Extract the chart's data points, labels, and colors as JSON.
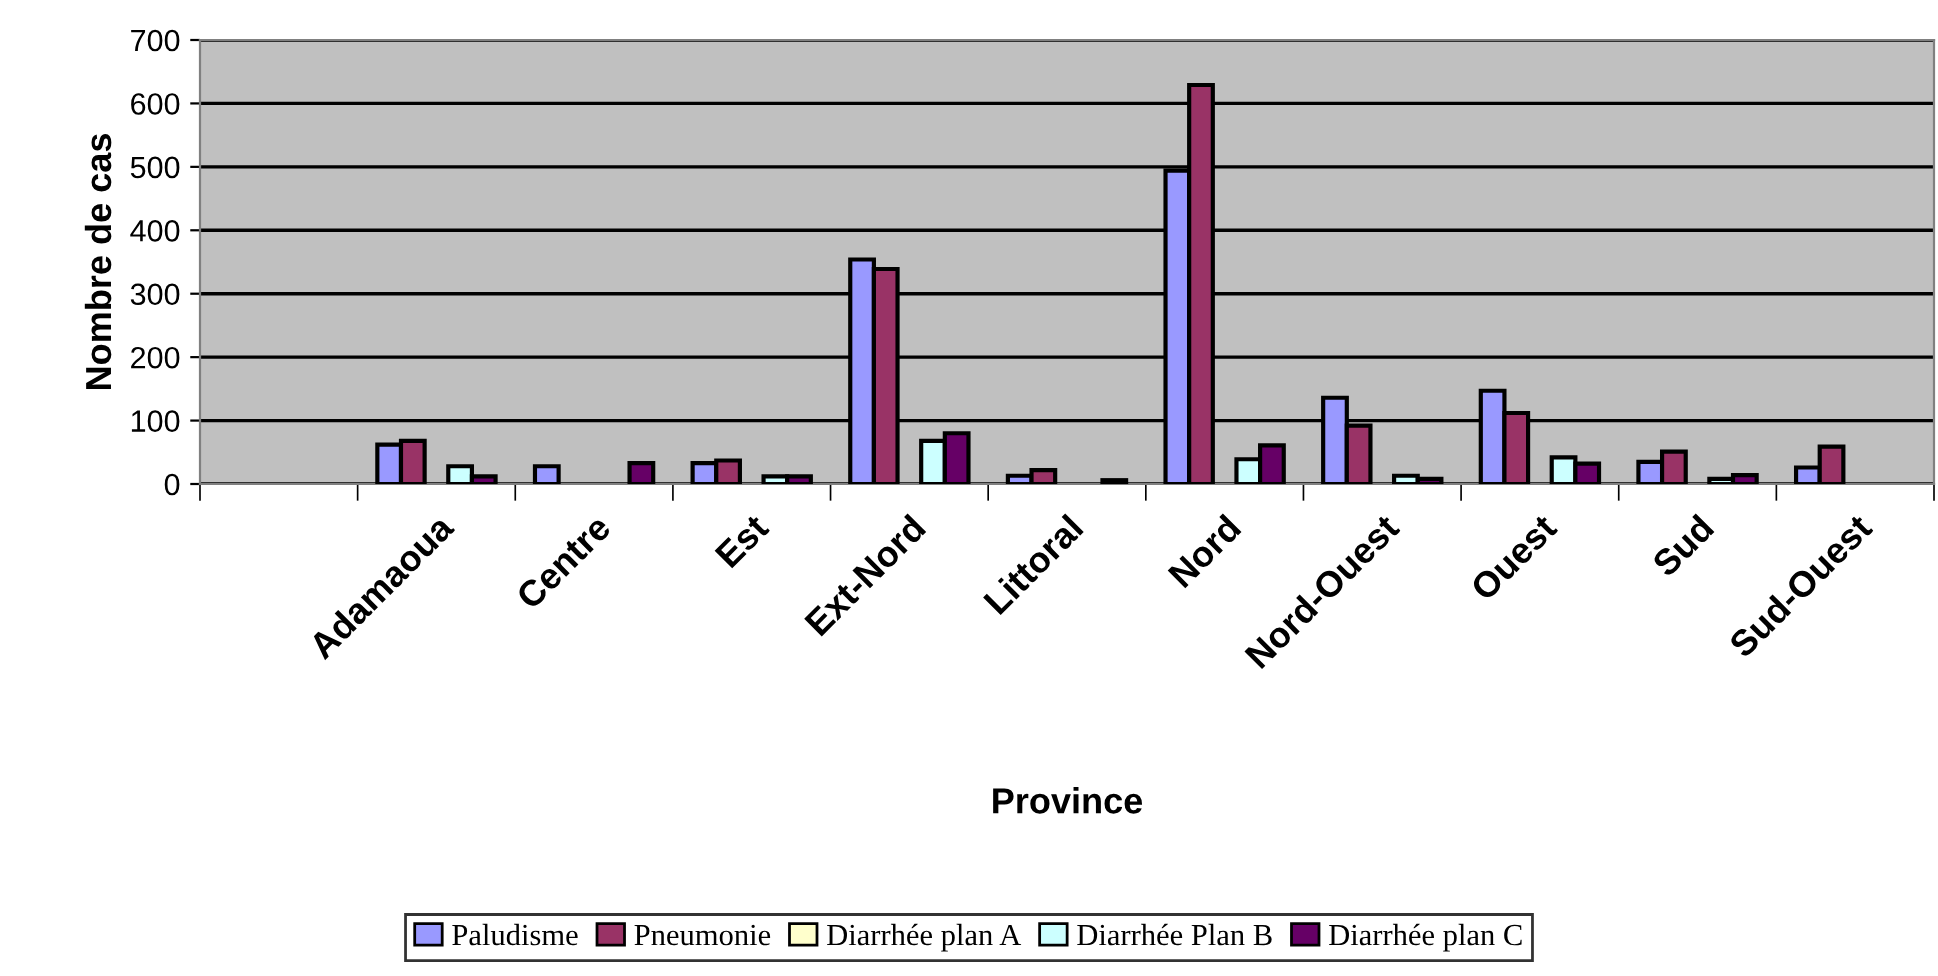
{
  "chart_data": {
    "type": "bar",
    "xlabel": "Province",
    "ylabel": "Nombre de cas",
    "categories": [
      null,
      "Adamaoua",
      "Centre",
      "Est",
      "Ext-Nord",
      "Littoral",
      "Nord",
      "Nord-Ouest",
      "Ouest",
      "Sud",
      "Sud-Ouest"
    ],
    "series": [
      {
        "name": "Paludisme",
        "color": "#9999ff",
        "values": [
          null,
          62,
          28,
          33,
          354,
          13,
          494,
          136,
          147,
          35,
          26
        ]
      },
      {
        "name": "Pneumonie",
        "color": "#993366",
        "values": [
          null,
          68,
          null,
          37,
          339,
          22,
          629,
          92,
          112,
          51,
          59
        ]
      },
      {
        "name": "Diarrhée plan A",
        "color": "#ffffcc",
        "values": [
          null,
          null,
          null,
          null,
          null,
          null,
          null,
          null,
          null,
          null,
          null
        ]
      },
      {
        "name": "Diarrhée Plan B",
        "color": "#ccffff",
        "values": [
          null,
          28,
          null,
          12,
          68,
          null,
          39,
          13,
          42,
          8,
          null
        ]
      },
      {
        "name": "Diarrhée plan C",
        "color": "#660066",
        "values": [
          null,
          12,
          33,
          12,
          80,
          6,
          61,
          8,
          32,
          14,
          null
        ]
      }
    ],
    "ylim": [
      0,
      700
    ],
    "yticks": [
      0,
      100,
      200,
      300,
      400,
      500,
      600,
      700
    ],
    "grid": "y",
    "legend": "bottom"
  }
}
